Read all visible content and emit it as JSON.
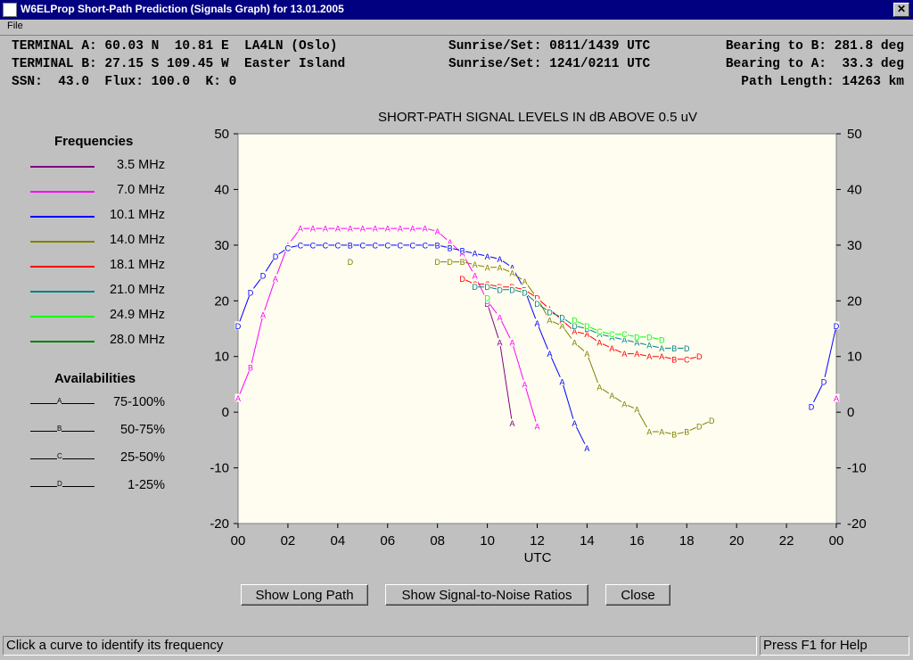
{
  "window": {
    "title": "W6ELProp Short-Path Prediction (Signals Graph) for 13.01.2005",
    "close_glyph": "✕"
  },
  "menu": {
    "file": "File"
  },
  "info": {
    "terminal_a": "TERMINAL A: 60.03 N  10.81 E  LA4LN (Oslo)",
    "terminal_b": "TERMINAL B: 27.15 S 109.45 W  Easter Island",
    "ssn_line": "SSN:  43.0  Flux: 100.0  K: 0",
    "sun_a": "Sunrise/Set: 0811/1439 UTC",
    "sun_b": "Sunrise/Set: 1241/0211 UTC",
    "bearing_b": "Bearing to B: 281.8 deg",
    "bearing_a": "Bearing to A:  33.3 deg",
    "path_length": "Path Length: 14263 km"
  },
  "legend": {
    "frequencies_title": "Frequencies",
    "frequencies": [
      {
        "label": "3.5 MHz",
        "color": "#800080"
      },
      {
        "label": "7.0 MHz",
        "color": "#ff00ff"
      },
      {
        "label": "10.1 MHz",
        "color": "#0000ff"
      },
      {
        "label": "14.0 MHz",
        "color": "#808000"
      },
      {
        "label": "18.1 MHz",
        "color": "#ff0000"
      },
      {
        "label": "21.0 MHz",
        "color": "#008080"
      },
      {
        "label": "24.9 MHz",
        "color": "#00ff00"
      },
      {
        "label": "28.0 MHz",
        "color": "#008000"
      }
    ],
    "availabilities_title": "Availabilities",
    "availabilities": [
      {
        "marker": "A",
        "label": "75-100%"
      },
      {
        "marker": "B",
        "label": "50-75%"
      },
      {
        "marker": "C",
        "label": "25-50%"
      },
      {
        "marker": "D",
        "label": "1-25%"
      }
    ]
  },
  "chart_data": {
    "type": "line",
    "title": "SHORT-PATH SIGNAL LEVELS IN dB ABOVE 0.5 uV",
    "xlabel": "UTC",
    "ylabel": "",
    "xlim": [
      0,
      24
    ],
    "ylim": [
      -20,
      50
    ],
    "x_ticks": [
      "00",
      "02",
      "04",
      "06",
      "08",
      "10",
      "12",
      "14",
      "16",
      "18",
      "20",
      "22",
      "00"
    ],
    "y_ticks": [
      50,
      40,
      30,
      20,
      10,
      0,
      -10,
      -20
    ],
    "series": [
      {
        "name": "3.5 MHz",
        "color": "#800080",
        "points": [
          [
            10.0,
            19.5,
            "D"
          ],
          [
            10.5,
            12.5,
            "A"
          ],
          [
            11.0,
            -2.0,
            "A"
          ]
        ]
      },
      {
        "name": "7.0 MHz",
        "color": "#ff00ff",
        "points": [
          [
            0.0,
            2.5,
            "A"
          ],
          [
            0.5,
            8.0,
            "B"
          ],
          [
            1.0,
            17.5,
            "A"
          ],
          [
            1.5,
            24.0,
            "A"
          ],
          [
            2.0,
            30.0,
            "A"
          ],
          [
            2.5,
            33.0,
            "A"
          ],
          [
            3.0,
            33.0,
            "A"
          ],
          [
            3.5,
            33.0,
            "A"
          ],
          [
            4.0,
            33.0,
            "A"
          ],
          [
            4.5,
            33.0,
            "A"
          ],
          [
            5.0,
            33.0,
            "A"
          ],
          [
            5.5,
            33.0,
            "A"
          ],
          [
            6.0,
            33.0,
            "A"
          ],
          [
            6.5,
            33.0,
            "A"
          ],
          [
            7.0,
            33.0,
            "A"
          ],
          [
            7.5,
            33.0,
            "A"
          ],
          [
            8.0,
            32.5,
            "A"
          ],
          [
            8.5,
            30.5,
            "A"
          ],
          [
            9.0,
            28.5,
            "A"
          ],
          [
            9.5,
            24.5,
            "A"
          ],
          [
            10.0,
            20.0,
            "D"
          ],
          [
            10.5,
            17.0,
            "A"
          ],
          [
            11.0,
            12.5,
            "A"
          ],
          [
            11.5,
            5.0,
            "A"
          ],
          [
            12.0,
            -2.5,
            "A"
          ],
          [
            24.0,
            2.5,
            "A"
          ]
        ]
      },
      {
        "name": "10.1 MHz",
        "color": "#0000ff",
        "points": [
          [
            0.0,
            15.5,
            "D"
          ],
          [
            0.5,
            21.5,
            "D"
          ],
          [
            1.0,
            24.5,
            "D"
          ],
          [
            1.5,
            28.0,
            "D"
          ],
          [
            2.0,
            29.5,
            "C"
          ],
          [
            2.5,
            30.0,
            "C"
          ],
          [
            3.0,
            30.0,
            "C"
          ],
          [
            3.5,
            30.0,
            "C"
          ],
          [
            4.0,
            30.0,
            "C"
          ],
          [
            4.5,
            30.0,
            "B"
          ],
          [
            5.0,
            30.0,
            "C"
          ],
          [
            5.5,
            30.0,
            "C"
          ],
          [
            6.0,
            30.0,
            "C"
          ],
          [
            6.5,
            30.0,
            "C"
          ],
          [
            7.0,
            30.0,
            "C"
          ],
          [
            7.5,
            30.0,
            "C"
          ],
          [
            8.0,
            30.0,
            "B"
          ],
          [
            8.5,
            29.5,
            "B"
          ],
          [
            9.0,
            29.0,
            "B"
          ],
          [
            9.5,
            28.5,
            "A"
          ],
          [
            10.0,
            28.0,
            "A"
          ],
          [
            10.5,
            27.5,
            "A"
          ],
          [
            11.0,
            26.0,
            "A"
          ],
          [
            11.5,
            22.0,
            "A"
          ],
          [
            12.0,
            16.0,
            "A"
          ],
          [
            12.5,
            10.5,
            "A"
          ],
          [
            13.0,
            5.5,
            "A"
          ],
          [
            13.5,
            -2.0,
            "A"
          ],
          [
            14.0,
            -6.5,
            "A"
          ],
          [
            23.0,
            1.0,
            "D"
          ],
          [
            23.5,
            5.5,
            "D"
          ],
          [
            24.0,
            15.5,
            "D"
          ]
        ]
      },
      {
        "name": "14.0 MHz",
        "color": "#808000",
        "points": [
          [
            4.5,
            27.0,
            "D"
          ],
          [
            8.0,
            27.0,
            "D"
          ],
          [
            8.5,
            27.0,
            "D"
          ],
          [
            9.0,
            27.0,
            "B"
          ],
          [
            9.5,
            26.5,
            "A"
          ],
          [
            10.0,
            26.0,
            "A"
          ],
          [
            10.5,
            26.0,
            "A"
          ],
          [
            11.0,
            25.0,
            "A"
          ],
          [
            11.5,
            23.5,
            "A"
          ],
          [
            12.0,
            20.5,
            "A"
          ],
          [
            12.5,
            16.5,
            "A"
          ],
          [
            13.0,
            15.5,
            "A"
          ],
          [
            13.5,
            12.5,
            "A"
          ],
          [
            14.0,
            10.5,
            "A"
          ],
          [
            14.5,
            4.5,
            "A"
          ],
          [
            15.0,
            3.0,
            "A"
          ],
          [
            15.5,
            1.5,
            "A"
          ],
          [
            16.0,
            0.5,
            "A"
          ],
          [
            16.5,
            -3.5,
            "A"
          ],
          [
            17.0,
            -3.5,
            "A"
          ],
          [
            17.5,
            -4.0,
            "B"
          ],
          [
            18.0,
            -3.5,
            "B"
          ],
          [
            18.5,
            -2.5,
            "D"
          ],
          [
            19.0,
            -1.5,
            "D"
          ]
        ]
      },
      {
        "name": "18.1 MHz",
        "color": "#ff0000",
        "points": [
          [
            9.0,
            24.0,
            "D"
          ],
          [
            9.5,
            23.0,
            "C"
          ],
          [
            10.0,
            23.0,
            "C"
          ],
          [
            10.5,
            22.5,
            "D"
          ],
          [
            11.0,
            22.5,
            "D"
          ],
          [
            11.5,
            22.0,
            "D"
          ],
          [
            12.0,
            20.5,
            "D"
          ],
          [
            12.5,
            18.5,
            "A"
          ],
          [
            13.0,
            16.5,
            "A"
          ],
          [
            13.5,
            14.5,
            "A"
          ],
          [
            14.0,
            14.0,
            "A"
          ],
          [
            14.5,
            12.5,
            "A"
          ],
          [
            15.0,
            11.5,
            "A"
          ],
          [
            15.5,
            10.5,
            "A"
          ],
          [
            16.0,
            10.5,
            "A"
          ],
          [
            16.5,
            10.0,
            "A"
          ],
          [
            17.0,
            10.0,
            "A"
          ],
          [
            17.5,
            9.5,
            "B"
          ],
          [
            18.0,
            9.5,
            "C"
          ],
          [
            18.5,
            10.0,
            "D"
          ]
        ]
      },
      {
        "name": "21.0 MHz",
        "color": "#008080",
        "points": [
          [
            9.5,
            22.5,
            "D"
          ],
          [
            10.0,
            22.5,
            "D"
          ],
          [
            10.5,
            22.0,
            "D"
          ],
          [
            11.0,
            22.0,
            "D"
          ],
          [
            11.5,
            21.5,
            "D"
          ],
          [
            12.0,
            19.5,
            "D"
          ],
          [
            12.5,
            18.0,
            "D"
          ],
          [
            13.0,
            17.0,
            "D"
          ],
          [
            13.5,
            15.5,
            "D"
          ],
          [
            14.0,
            15.0,
            "B"
          ],
          [
            14.5,
            14.0,
            "A"
          ],
          [
            15.0,
            13.5,
            "A"
          ],
          [
            15.5,
            13.0,
            "A"
          ],
          [
            16.0,
            12.5,
            "A"
          ],
          [
            16.5,
            12.0,
            "A"
          ],
          [
            17.0,
            11.5,
            "A"
          ],
          [
            17.5,
            11.5,
            "B"
          ],
          [
            18.0,
            11.5,
            "D"
          ]
        ]
      },
      {
        "name": "24.9 MHz",
        "color": "#00ff00",
        "points": [
          [
            10.0,
            20.5,
            "D"
          ],
          [
            13.5,
            16.5,
            "D"
          ],
          [
            14.0,
            15.5,
            "D"
          ],
          [
            14.5,
            14.5,
            "C"
          ],
          [
            15.0,
            14.0,
            "C"
          ],
          [
            15.5,
            14.0,
            "C"
          ],
          [
            16.0,
            13.5,
            "D"
          ],
          [
            16.5,
            13.5,
            "D"
          ],
          [
            17.0,
            13.0,
            "D"
          ]
        ]
      }
    ]
  },
  "buttons": {
    "long_path": "Show Long Path",
    "snr": "Show Signal-to-Noise Ratios",
    "close": "Close"
  },
  "status": {
    "left": "Click a curve to identify its frequency",
    "right": "Press F1 for Help"
  }
}
